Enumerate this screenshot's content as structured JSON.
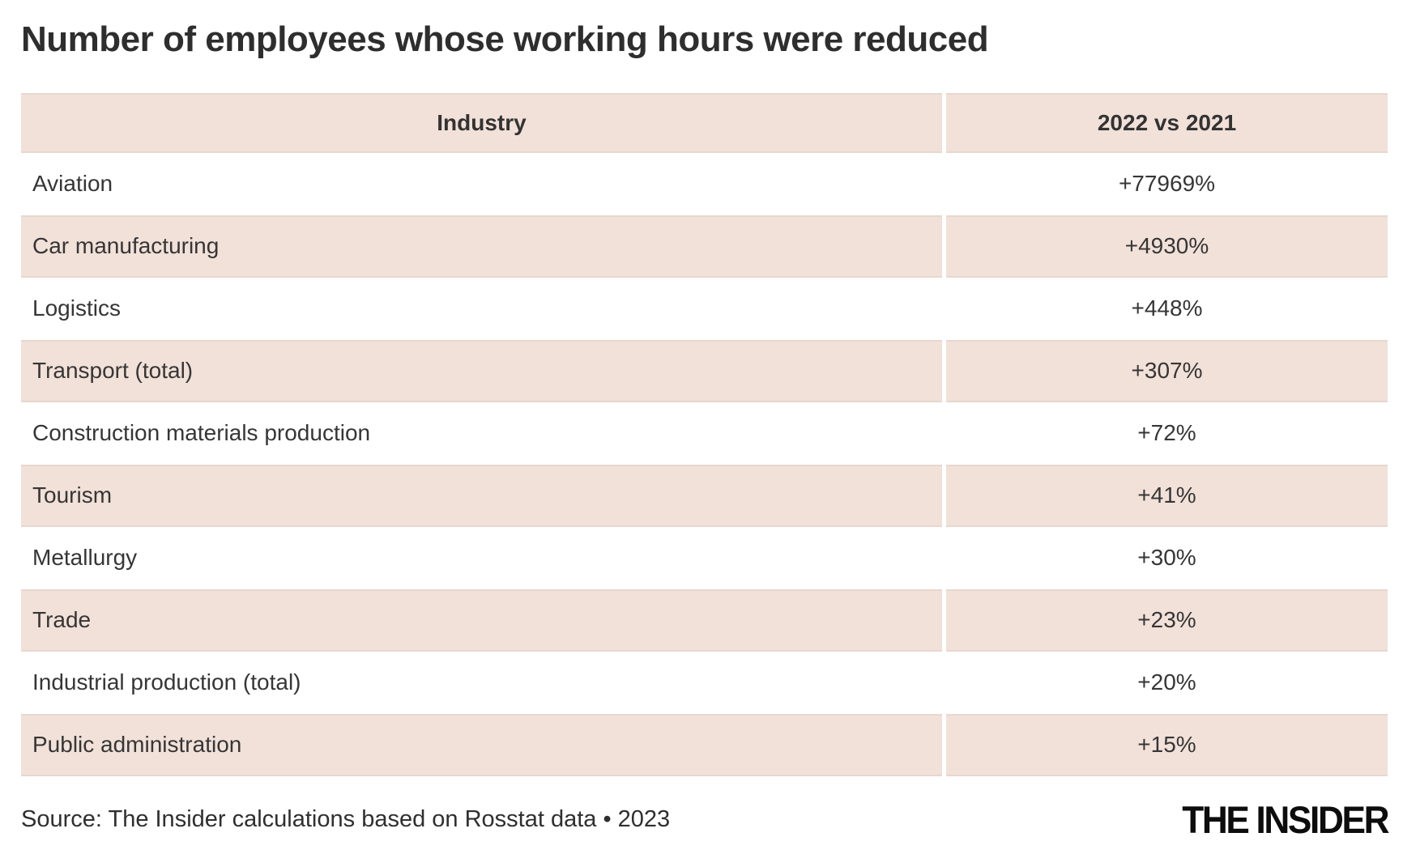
{
  "title": "Number of employees whose working hours were reduced",
  "table": {
    "columns": [
      "Industry",
      "2022 vs 2021"
    ],
    "rows": [
      {
        "industry": "Aviation",
        "change": "+77969%"
      },
      {
        "industry": "Car manufacturing",
        "change": "+4930%"
      },
      {
        "industry": "Logistics",
        "change": "+448%"
      },
      {
        "industry": "Transport (total)",
        "change": "+307%"
      },
      {
        "industry": "Construction materials production",
        "change": "+72%"
      },
      {
        "industry": "Tourism",
        "change": "+41%"
      },
      {
        "industry": "Metallurgy",
        "change": "+30%"
      },
      {
        "industry": "Trade",
        "change": "+23%"
      },
      {
        "industry": "Industrial production (total)",
        "change": "+20%"
      },
      {
        "industry": "Public administration",
        "change": "+15%"
      }
    ]
  },
  "footer": {
    "source": "Source: The Insider calculations based on Rosstat data • 2023",
    "logo": "THE INSIDER"
  },
  "colors": {
    "row_shade": "#f2e1d9",
    "title_text": "#2e2e2e",
    "body_text": "#363636",
    "logo_text": "#0d0d0d"
  },
  "chart_data": {
    "type": "table",
    "title": "Number of employees whose working hours were reduced",
    "columns": [
      "Industry",
      "2022 vs 2021"
    ],
    "rows": [
      [
        "Aviation",
        "+77969%"
      ],
      [
        "Car manufacturing",
        "+4930%"
      ],
      [
        "Logistics",
        "+448%"
      ],
      [
        "Transport (total)",
        "+307%"
      ],
      [
        "Construction materials production",
        "+72%"
      ],
      [
        "Tourism",
        "+41%"
      ],
      [
        "Metallurgy",
        "+30%"
      ],
      [
        "Trade",
        "+23%"
      ],
      [
        "Industrial production (total)",
        "+20%"
      ],
      [
        "Public administration",
        "+15%"
      ]
    ],
    "categories": [
      "Aviation",
      "Car manufacturing",
      "Logistics",
      "Transport (total)",
      "Construction materials production",
      "Tourism",
      "Metallurgy",
      "Trade",
      "Industrial production (total)",
      "Public administration"
    ],
    "values_percent_change_2022_vs_2021": [
      77969,
      4930,
      448,
      307,
      72,
      41,
      30,
      23,
      20,
      15
    ],
    "source": "The Insider calculations based on Rosstat data • 2023",
    "layout": {
      "striped_rows": true,
      "value_column_align": "center",
      "label_column_align": "left"
    }
  }
}
